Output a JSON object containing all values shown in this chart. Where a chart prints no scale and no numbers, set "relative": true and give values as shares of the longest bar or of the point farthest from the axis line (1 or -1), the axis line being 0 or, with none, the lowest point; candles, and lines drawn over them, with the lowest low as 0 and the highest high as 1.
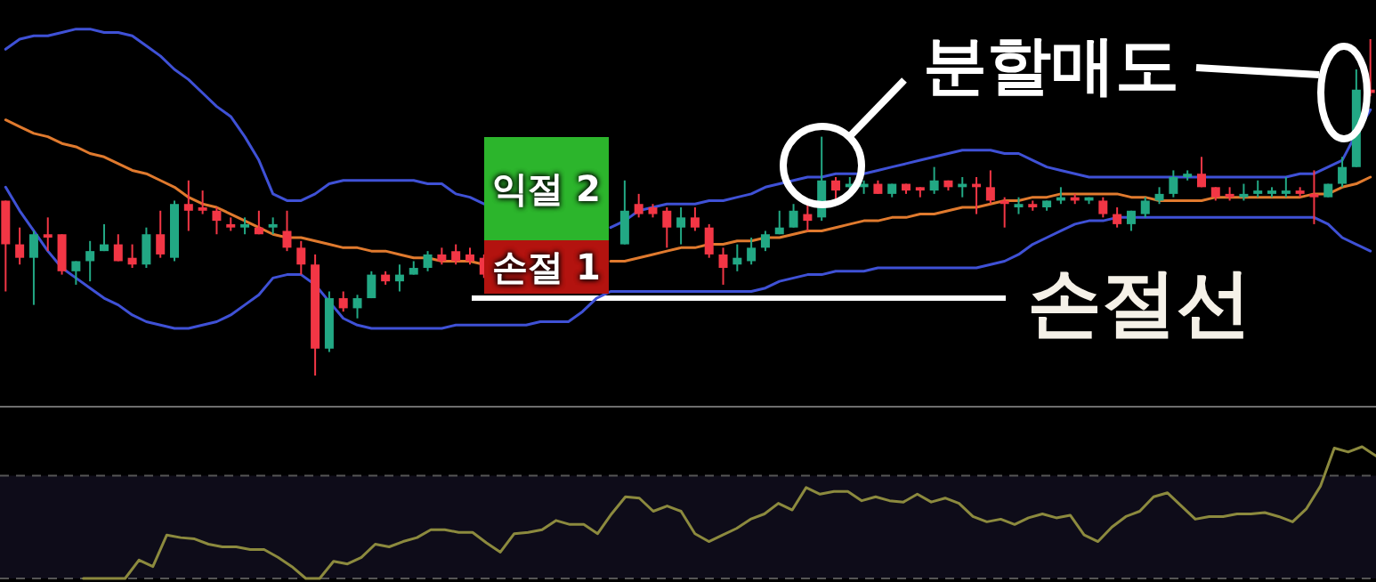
{
  "chart_data": [
    {
      "type": "candlestick",
      "relative": true,
      "categories": [
        null,
        null,
        null,
        null,
        null,
        null,
        null,
        null,
        null,
        null,
        null,
        null,
        null,
        null,
        null,
        null,
        null,
        null,
        null,
        null,
        null,
        null,
        null,
        null,
        null,
        null,
        null,
        null,
        null,
        null,
        null,
        null,
        null,
        null,
        null,
        null,
        null,
        null,
        null,
        null,
        null,
        null,
        null,
        null,
        null,
        null,
        null,
        null,
        null,
        null,
        null,
        null,
        null,
        null,
        null,
        null,
        null,
        null,
        null,
        null,
        null,
        null,
        null,
        null,
        null,
        null,
        null,
        null,
        null,
        null,
        null,
        null,
        null,
        null,
        null,
        null,
        null,
        null,
        null,
        null,
        null,
        null,
        null,
        null,
        null,
        null,
        null,
        null,
        null,
        null,
        null,
        null,
        null,
        null,
        null,
        null,
        null,
        null
      ],
      "ohlc": [
        [
          0.52,
          0.52,
          0.25,
          0.39
        ],
        [
          0.39,
          0.44,
          0.33,
          0.35
        ],
        [
          0.35,
          0.43,
          0.21,
          0.42
        ],
        [
          0.42,
          0.47,
          0.37,
          0.41
        ],
        [
          0.42,
          0.42,
          0.3,
          0.31
        ],
        [
          0.31,
          0.34,
          0.27,
          0.34
        ],
        [
          0.34,
          0.4,
          0.28,
          0.37
        ],
        [
          0.37,
          0.45,
          0.37,
          0.39
        ],
        [
          0.39,
          0.42,
          0.34,
          0.34
        ],
        [
          0.35,
          0.39,
          0.32,
          0.33
        ],
        [
          0.33,
          0.44,
          0.32,
          0.42
        ],
        [
          0.42,
          0.49,
          0.35,
          0.36
        ],
        [
          0.35,
          0.52,
          0.34,
          0.51
        ],
        [
          0.51,
          0.58,
          0.43,
          0.49
        ],
        [
          0.5,
          0.55,
          0.48,
          0.49
        ],
        [
          0.49,
          0.5,
          0.42,
          0.46
        ],
        [
          0.45,
          0.47,
          0.43,
          0.44
        ],
        [
          0.44,
          0.47,
          0.42,
          0.45
        ],
        [
          0.44,
          0.49,
          0.42,
          0.42
        ],
        [
          0.44,
          0.47,
          0.42,
          0.45
        ],
        [
          0.43,
          0.49,
          0.37,
          0.38
        ],
        [
          0.38,
          0.4,
          0.3,
          0.33
        ],
        [
          0.33,
          0.36,
          0,
          0.08
        ],
        [
          0.08,
          0.25,
          0.07,
          0.23
        ],
        [
          0.23,
          0.25,
          0.19,
          0.2
        ],
        [
          0.2,
          0.24,
          0.17,
          0.23
        ],
        [
          0.23,
          0.31,
          0.23,
          0.3
        ],
        [
          0.3,
          0.31,
          0.27,
          0.28
        ],
        [
          0.28,
          0.33,
          0.25,
          0.3
        ],
        [
          0.3,
          0.34,
          0.3,
          0.32
        ],
        [
          0.32,
          0.37,
          0.31,
          0.36
        ],
        [
          0.36,
          0.38,
          0.33,
          0.34
        ],
        [
          0.37,
          0.39,
          0.33,
          0.34
        ],
        [
          0.36,
          0.38,
          0.33,
          0.34
        ],
        [
          0.35,
          0.36,
          0.29,
          0.3
        ],
        null,
        null,
        null,
        null,
        null,
        null,
        null,
        null,
        null,
        [
          0.39,
          0.58,
          0.39,
          0.49
        ],
        [
          0.51,
          0.54,
          0.47,
          0.48
        ],
        [
          0.5,
          0.51,
          0.47,
          0.48
        ],
        [
          0.49,
          0.5,
          0.38,
          0.44
        ],
        [
          0.44,
          0.5,
          0.39,
          0.47
        ],
        [
          0.47,
          0.5,
          0.43,
          0.44
        ],
        [
          0.44,
          0.45,
          0.35,
          0.36
        ],
        [
          0.36,
          0.38,
          0.27,
          0.32
        ],
        [
          0.33,
          0.39,
          0.31,
          0.35
        ],
        [
          0.34,
          0.41,
          0.33,
          0.38
        ],
        [
          0.38,
          0.43,
          0.37,
          0.42
        ],
        [
          0.42,
          0.49,
          0.42,
          0.44
        ],
        [
          0.44,
          0.51,
          0.44,
          0.49
        ],
        [
          0.48,
          0.51,
          0.43,
          0.46
        ],
        [
          0.47,
          0.71,
          0.46,
          0.58
        ],
        [
          0.58,
          0.59,
          0.51,
          0.55
        ],
        [
          0.56,
          0.59,
          0.54,
          0.57
        ],
        [
          0.56,
          0.58,
          0.54,
          0.57
        ],
        [
          0.57,
          0.58,
          0.54,
          0.54
        ],
        [
          0.54,
          0.57,
          0.53,
          0.57
        ],
        [
          0.57,
          0.57,
          0.54,
          0.55
        ],
        [
          0.56,
          0.56,
          0.53,
          0.55
        ],
        [
          0.55,
          0.62,
          0.54,
          0.58
        ],
        [
          0.58,
          0.58,
          0.55,
          0.56
        ],
        [
          0.56,
          0.59,
          0.53,
          0.57
        ],
        [
          0.57,
          0.59,
          0.48,
          0.56
        ],
        [
          0.56,
          0.61,
          0.51,
          0.52
        ],
        [
          0.52,
          0.53,
          0.44,
          0.51
        ],
        [
          0.5,
          0.53,
          0.48,
          0.51
        ],
        [
          0.51,
          0.52,
          0.49,
          0.5
        ],
        [
          0.5,
          0.52,
          0.49,
          0.52
        ],
        [
          0.52,
          0.56,
          0.51,
          0.53
        ],
        [
          0.53,
          0.54,
          0.51,
          0.52
        ],
        [
          0.52,
          0.53,
          0.51,
          0.53
        ],
        [
          0.52,
          0.53,
          0.47,
          0.48
        ],
        [
          0.48,
          0.5,
          0.44,
          0.45
        ],
        [
          0.45,
          0.49,
          0.43,
          0.49
        ],
        [
          0.48,
          0.53,
          0.47,
          0.52
        ],
        [
          0.52,
          0.56,
          0.51,
          0.54
        ],
        [
          0.54,
          0.61,
          0.53,
          0.59
        ],
        [
          0.59,
          0.61,
          0.58,
          0.6
        ],
        [
          0.6,
          0.65,
          0.56,
          0.56
        ],
        [
          0.56,
          0.56,
          0.52,
          0.53
        ],
        [
          0.54,
          0.56,
          0.52,
          0.53
        ],
        [
          0.53,
          0.57,
          0.52,
          0.54
        ],
        [
          0.54,
          0.58,
          0.53,
          0.55
        ],
        [
          0.54,
          0.56,
          0.53,
          0.55
        ],
        [
          0.54,
          0.59,
          0.53,
          0.55
        ],
        [
          0.55,
          0.56,
          0.53,
          0.54
        ],
        [
          0.54,
          0.61,
          0.45,
          0.53
        ],
        [
          0.53,
          0.57,
          0.53,
          0.57
        ],
        [
          0.57,
          0.65,
          0.56,
          0.62
        ],
        [
          0.62,
          0.91,
          0.62,
          0.85
        ],
        [
          0.85,
          1,
          0.83,
          0.84
        ]
      ],
      "series": [
        {
          "type": "line",
          "color": "#3f51d6",
          "values": [
            0.97,
            1.0,
            1.01,
            1.01,
            1.02,
            1.03,
            1.03,
            1.02,
            1.02,
            1.01,
            0.98,
            0.95,
            0.91,
            0.88,
            0.84,
            0.8,
            0.77,
            0.71,
            0.64,
            0.54,
            0.52,
            0.52,
            0.54,
            0.57,
            0.58,
            0.58,
            0.58,
            0.58,
            0.58,
            0.58,
            0.57,
            0.57,
            0.54,
            0.53,
            0.51,
            null,
            null,
            null,
            null,
            null,
            null,
            null,
            null,
            0.44,
            0.46,
            0.49,
            0.5,
            0.51,
            0.51,
            0.51,
            0.52,
            0.52,
            0.53,
            0.54,
            0.56,
            0.57,
            0.58,
            0.59,
            0.59,
            0.6,
            0.6,
            0.6,
            0.61,
            0.62,
            0.63,
            0.64,
            0.65,
            0.66,
            0.67,
            0.67,
            0.67,
            0.66,
            0.66,
            0.64,
            0.62,
            0.61,
            0.6,
            0.59,
            0.59,
            0.59,
            0.59,
            0.59,
            0.59,
            0.59,
            0.59,
            0.59,
            0.59,
            0.59,
            0.59,
            0.59,
            0.59,
            0.59,
            0.6,
            0.6,
            0.62,
            0.64,
            0.72,
            0.79
          ]
        },
        {
          "type": "line",
          "color": "#3f51d6",
          "values": [
            0.56,
            0.49,
            0.43,
            0.37,
            0.32,
            0.29,
            0.26,
            0.23,
            0.21,
            0.18,
            0.16,
            0.15,
            0.14,
            0.14,
            0.15,
            0.16,
            0.18,
            0.21,
            0.24,
            0.29,
            0.3,
            0.3,
            0.27,
            0.22,
            0.17,
            0.15,
            0.14,
            0.14,
            0.14,
            0.14,
            0.14,
            0.14,
            0.15,
            0.15,
            0.15,
            0.15,
            0.15,
            0.15,
            0.16,
            0.16,
            0.16,
            0.19,
            0.23,
            0.25,
            0.25,
            0.25,
            0.25,
            0.25,
            0.25,
            0.25,
            0.25,
            0.25,
            0.25,
            0.25,
            0.26,
            0.28,
            0.29,
            0.3,
            0.3,
            0.31,
            0.31,
            0.31,
            0.32,
            0.32,
            0.32,
            0.32,
            0.32,
            0.32,
            0.32,
            0.32,
            0.33,
            0.34,
            0.36,
            0.39,
            0.41,
            0.43,
            0.45,
            0.46,
            0.46,
            0.47,
            0.47,
            0.47,
            0.47,
            0.47,
            0.47,
            0.47,
            0.47,
            0.47,
            0.47,
            0.47,
            0.47,
            0.47,
            0.47,
            0.47,
            0.45,
            0.41,
            0.39,
            0.37
          ]
        },
        {
          "type": "line",
          "color": "#e07a2e",
          "values": [
            0.76,
            0.74,
            0.72,
            0.71,
            0.69,
            0.68,
            0.66,
            0.65,
            0.63,
            0.61,
            0.6,
            0.58,
            0.56,
            0.53,
            0.51,
            0.5,
            0.48,
            0.46,
            0.44,
            0.42,
            0.41,
            0.41,
            0.4,
            0.39,
            0.38,
            0.38,
            0.37,
            0.37,
            0.36,
            0.35,
            0.35,
            0.34,
            0.34,
            0.34,
            0.33,
            null,
            null,
            null,
            null,
            null,
            null,
            null,
            null,
            0.34,
            0.34,
            0.35,
            0.36,
            0.37,
            0.38,
            0.38,
            0.39,
            0.39,
            0.4,
            0.4,
            0.41,
            0.41,
            0.42,
            0.43,
            0.43,
            0.44,
            0.45,
            0.46,
            0.46,
            0.47,
            0.47,
            0.48,
            0.48,
            0.49,
            0.5,
            0.5,
            0.51,
            0.52,
            0.52,
            0.53,
            0.53,
            0.54,
            0.54,
            0.54,
            0.54,
            0.54,
            0.53,
            0.53,
            0.52,
            0.52,
            0.52,
            0.52,
            0.53,
            0.53,
            0.53,
            0.53,
            0.53,
            0.53,
            0.53,
            0.54,
            0.54,
            0.56,
            0.57,
            0.59
          ]
        }
      ],
      "ref_lines": [
        {
          "axis": "y",
          "value": 0.23,
          "label": "손절선",
          "color": "#ffffff"
        }
      ],
      "annotations": [
        "익절 2",
        "손절 1",
        "분할매도"
      ]
    },
    {
      "type": "line",
      "relative": true,
      "categories": [
        null,
        null,
        null,
        null,
        null,
        null,
        null,
        null,
        null,
        null,
        null,
        null,
        null,
        null,
        null,
        null,
        null,
        null,
        null,
        null,
        null,
        null,
        null,
        null,
        null,
        null,
        null,
        null,
        null,
        null,
        null,
        null,
        null,
        null,
        null,
        null,
        null,
        null,
        null,
        null,
        null,
        null,
        null,
        null,
        null,
        null,
        null,
        null,
        null,
        null,
        null,
        null,
        null,
        null,
        null,
        null,
        null,
        null,
        null,
        null,
        null,
        null,
        null,
        null,
        null,
        null,
        null,
        null,
        null,
        null,
        null,
        null,
        null,
        null,
        null,
        null,
        null,
        null,
        null,
        null,
        null,
        null,
        null,
        null,
        null,
        null,
        null,
        null,
        null,
        null,
        null,
        null,
        null,
        null,
        null,
        null,
        null,
        null,
        null,
        null
      ],
      "series": [
        {
          "color": "#8c8a3e",
          "values": [
            null,
            null,
            null,
            null,
            null,
            null,
            0,
            0,
            0,
            0,
            0.14,
            0.09,
            0.33,
            0.31,
            0.3,
            0.26,
            0.24,
            0.24,
            0.22,
            0.22,
            0.16,
            0.09,
            0,
            0,
            0.13,
            0.11,
            0.16,
            0.26,
            0.24,
            0.28,
            0.31,
            0.37,
            0.37,
            0.35,
            0.35,
            0.27,
            0.2,
            0.34,
            0.35,
            0.37,
            0.44,
            0.41,
            0.41,
            0.34,
            0.49,
            0.62,
            0.61,
            0.51,
            0.55,
            0.51,
            0.34,
            0.28,
            0.33,
            0.38,
            0.45,
            0.49,
            0.57,
            0.52,
            0.69,
            0.64,
            0.66,
            0.66,
            0.59,
            0.62,
            0.59,
            0.58,
            0.64,
            0.58,
            0.61,
            0.57,
            0.47,
            0.43,
            0.45,
            0.41,
            0.46,
            0.49,
            0.46,
            0.48,
            0.33,
            0.28,
            0.39,
            0.47,
            0.51,
            0.62,
            0.65,
            0.55,
            0.45,
            0.47,
            0.47,
            0.49,
            0.49,
            0.5,
            0.47,
            0.43,
            0.53,
            0.7,
            0.99,
            0.96,
            1,
            0.93
          ]
        }
      ],
      "ref_lines": [
        {
          "axis": "y",
          "value": 0.78,
          "color": "#555555",
          "line_style": "dashed"
        },
        {
          "axis": "y",
          "value": 0,
          "color": "#555555",
          "line_style": "dashed"
        }
      ],
      "bands": [
        {
          "axis": "y",
          "from": 0,
          "to": 0.78,
          "color": "#0e0c19"
        }
      ]
    }
  ]
}
